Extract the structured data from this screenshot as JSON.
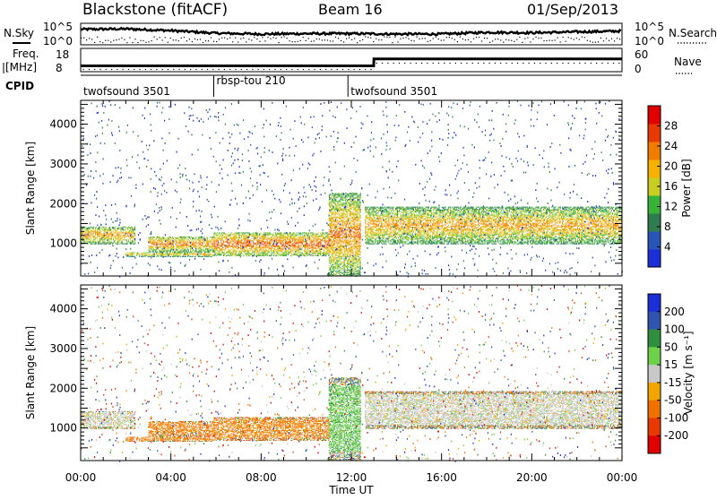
{
  "header": {
    "station": "Blackstone (fitACF)",
    "beam": "Beam 16",
    "date": "01/Sep/2013"
  },
  "panels": {
    "nsky_label": "N.Sky",
    "nsky_ticks": [
      "10^5",
      "10^0"
    ],
    "freq_label_line1": "Freq.",
    "freq_label_line2": "[MHz]",
    "freq_ticks": [
      "18",
      "8"
    ],
    "nave_ticks": [
      "60",
      "0"
    ],
    "nsearch_label": "N.Search",
    "nave_label": "Nave",
    "cpid_label": "CPID",
    "cpid_segments": [
      {
        "name": "twofsound 3501",
        "start_hour": 0.0,
        "end_hour": 5.9
      },
      {
        "name": "rbsp-tou 210",
        "start_hour": 5.9,
        "end_hour": 11.85
      },
      {
        "name": "twofsound 3501",
        "start_hour": 11.85,
        "end_hour": 24.0
      }
    ]
  },
  "axes": {
    "ylabel": "Slant Range [km]",
    "xlabel": "Time UT",
    "y_ticks": [
      "1000",
      "2000",
      "3000",
      "4000"
    ],
    "x_ticks": [
      "00:00",
      "04:00",
      "08:00",
      "12:00",
      "16:00",
      "20:00",
      "00:00"
    ]
  },
  "power_scale": {
    "label": "Power [dB]",
    "ticks": [
      "4",
      "8",
      "12",
      "16",
      "20",
      "24",
      "28"
    ],
    "colors": [
      "#1b2fd6",
      "#2a55b8",
      "#2f7d4e",
      "#38b337",
      "#c9cf22",
      "#f5b000",
      "#f07d00",
      "#e83a00",
      "#e00000"
    ]
  },
  "velocity_scale": {
    "label": "Velocity [m s⁻¹]",
    "ticks": [
      "200",
      "100",
      "50",
      "15",
      "-15",
      "-50",
      "-100",
      "-200"
    ],
    "colors": [
      "#1b2fd6",
      "#2f55b0",
      "#2f8f3f",
      "#6dd14a",
      "#c8c8c8",
      "#f2a500",
      "#f07000",
      "#e83a00",
      "#e00000"
    ]
  },
  "chart_data": [
    {
      "type": "heatmap",
      "title": "Power",
      "xlabel": "Time UT",
      "ylabel": "Slant Range [km]",
      "xlim": [
        0,
        24
      ],
      "ylim": [
        180,
        4600
      ],
      "colorbar": {
        "label": "Power [dB]",
        "range": [
          0,
          32
        ]
      },
      "echo_regions": [
        {
          "t_start": 0.0,
          "t_end": 2.4,
          "range_km": [
            1000,
            1450
          ],
          "power_db": 22
        },
        {
          "t_start": 2.0,
          "t_end": 5.9,
          "range_km": [
            680,
            800
          ],
          "power_db": 20
        },
        {
          "t_start": 3.0,
          "t_end": 5.9,
          "range_km": [
            800,
            1200
          ],
          "power_db": 24
        },
        {
          "t_start": 5.9,
          "t_end": 11.0,
          "range_km": [
            700,
            1300
          ],
          "power_db": 26
        },
        {
          "t_start": 11.0,
          "t_end": 12.4,
          "range_km": [
            200,
            2300
          ],
          "power_db": 24
        },
        {
          "t_start": 12.6,
          "t_end": 24.0,
          "range_km": [
            1000,
            1950
          ],
          "power_db": 22
        }
      ]
    },
    {
      "type": "heatmap",
      "title": "Velocity",
      "xlabel": "Time UT",
      "ylabel": "Slant Range [km]",
      "xlim": [
        0,
        24
      ],
      "ylim": [
        180,
        4600
      ],
      "colorbar": {
        "label": "Velocity [m s⁻¹]",
        "range": [
          -250,
          250
        ]
      },
      "echo_regions": [
        {
          "t_start": 0.0,
          "t_end": 2.4,
          "range_km": [
            1000,
            1450
          ],
          "velocity": 0
        },
        {
          "t_start": 2.0,
          "t_end": 5.9,
          "range_km": [
            650,
            1100
          ],
          "velocity": -60
        },
        {
          "t_start": 5.9,
          "t_end": 11.0,
          "range_km": [
            700,
            1300
          ],
          "velocity": -60
        },
        {
          "t_start": 11.0,
          "t_end": 12.4,
          "range_km": [
            200,
            2300
          ],
          "velocity": 40
        },
        {
          "t_start": 12.6,
          "t_end": 24.0,
          "range_km": [
            1000,
            1950
          ],
          "velocity": 0
        }
      ]
    },
    {
      "type": "line",
      "title": "N.Sky",
      "ylim": [
        0,
        5
      ],
      "y_scale": "log10",
      "x": [
        0,
        2,
        4,
        6,
        8,
        10,
        12,
        14,
        16,
        18,
        20,
        22,
        24
      ],
      "series": [
        {
          "values": [
            3.6,
            3.7,
            3.3,
            2.7,
            2.5,
            2.6,
            2.6,
            2.5,
            2.5,
            2.9,
            2.8,
            3.0,
            3.2
          ]
        }
      ]
    },
    {
      "type": "line",
      "title": "Freq.",
      "ylim": [
        8,
        18
      ],
      "x": [
        0,
        12.99,
        13.0,
        24
      ],
      "series": [
        {
          "values": [
            10.5,
            10.5,
            13.5,
            13.5
          ]
        }
      ]
    }
  ]
}
